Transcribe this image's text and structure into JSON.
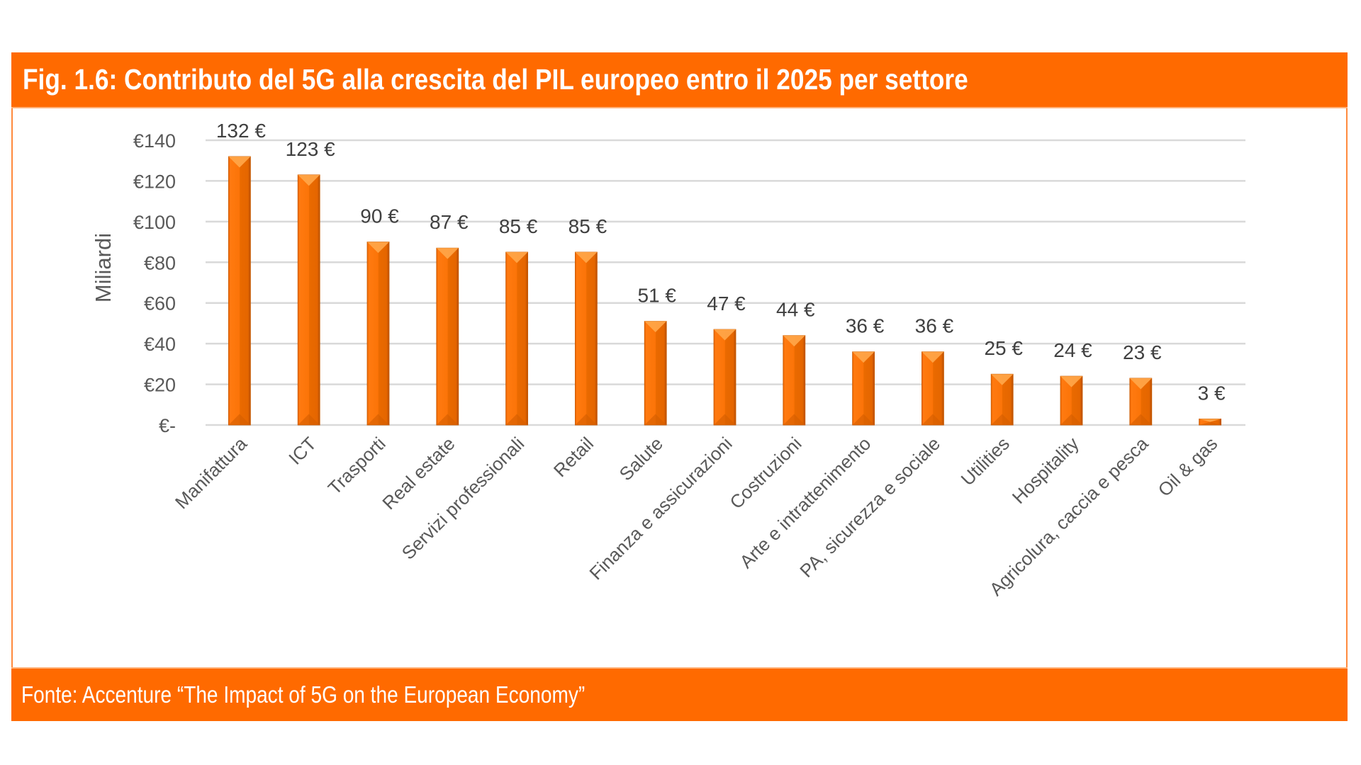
{
  "figure": {
    "title": "Fig. 1.6: Contributo del 5G alla crescita del PIL europeo entro il 2025 per settore",
    "source": "Fonte: Accenture “The Impact of 5G on the European Economy”",
    "accent_color": "#ff6a00",
    "bar_color": "#f97306"
  },
  "chart_data": {
    "type": "bar",
    "title": "Contributo del 5G alla crescita del PIL europeo entro il 2025 per settore",
    "xlabel": "",
    "ylabel": "Miliardi",
    "ylim": [
      0,
      140
    ],
    "yticks": [
      0,
      20,
      40,
      60,
      80,
      100,
      120,
      140
    ],
    "ytick_labels": [
      "€-",
      "€20",
      "€40",
      "€60",
      "€80",
      "€100",
      "€120",
      "€140"
    ],
    "grid": true,
    "legend": "none",
    "categories": [
      "Manifattura",
      "ICT",
      "Trasporti",
      "Real estate",
      "Servizi professionali",
      "Retail",
      "Salute",
      "Finanza e assicurazioni",
      "Costruzioni",
      "Arte e intrattenimento",
      "PA, sicurezza e sociale",
      "Utilities",
      "Hospitality",
      "Agricolura, caccia e pesca",
      "Oil & gas"
    ],
    "values": [
      132,
      123,
      90,
      87,
      85,
      85,
      51,
      47,
      44,
      36,
      36,
      25,
      24,
      23,
      3
    ],
    "value_labels": [
      "132 €",
      "123 €",
      "90 €",
      "87 €",
      "85 €",
      "85 €",
      "51 €",
      "47 €",
      "44 €",
      "36 €",
      "36 €",
      "25 €",
      "24 €",
      "23 €",
      "3 €"
    ],
    "units": "€ miliardi"
  }
}
